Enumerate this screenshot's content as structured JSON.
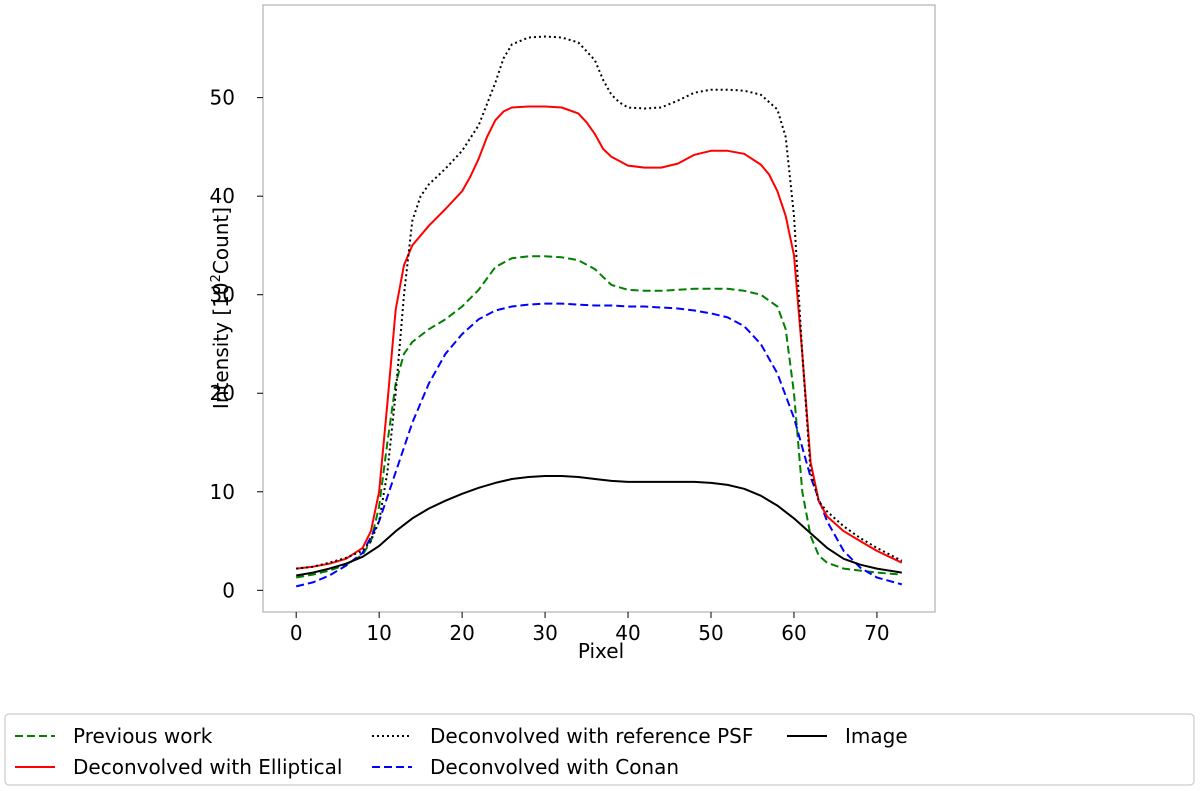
{
  "chart_data": {
    "type": "line",
    "title": "",
    "xlabel": "Pixel",
    "ylabel_prefix": "Intensity [10",
    "ylabel_sup": "2",
    "ylabel_suffix": "Count]",
    "xlim": [
      -4,
      77
    ],
    "ylim": [
      -2.2,
      59.4
    ],
    "xticks": [
      0,
      10,
      20,
      30,
      40,
      50,
      60,
      70
    ],
    "yticks": [
      0,
      10,
      20,
      30,
      40,
      50
    ],
    "legend_position": "bottom",
    "series": [
      {
        "name": "Previous work",
        "color": "#008000",
        "style": "dashed",
        "x": [
          0,
          2,
          4,
          6,
          8,
          9,
          10,
          11,
          12,
          13,
          14,
          16,
          18,
          20,
          22,
          24,
          26,
          28,
          30,
          32,
          34,
          36,
          38,
          40,
          42,
          44,
          46,
          48,
          50,
          52,
          54,
          56,
          58,
          59,
          60,
          61,
          62,
          63,
          64,
          66,
          68,
          70,
          73
        ],
        "values": [
          1.3,
          1.6,
          2.0,
          2.6,
          3.6,
          5.0,
          8.5,
          15.0,
          21.0,
          24.0,
          25.2,
          26.5,
          27.5,
          28.8,
          30.5,
          32.8,
          33.7,
          33.9,
          33.9,
          33.8,
          33.5,
          32.6,
          31.0,
          30.5,
          30.4,
          30.4,
          30.5,
          30.6,
          30.6,
          30.6,
          30.4,
          30.0,
          28.8,
          26.5,
          20.0,
          10.0,
          5.5,
          3.5,
          2.8,
          2.2,
          2.0,
          1.8,
          1.6
        ]
      },
      {
        "name": "Deconvolved with Conan",
        "color": "#0000ff",
        "style": "dashed",
        "x": [
          0,
          2,
          4,
          6,
          8,
          10,
          12,
          14,
          16,
          18,
          20,
          22,
          24,
          26,
          28,
          30,
          32,
          34,
          36,
          38,
          40,
          42,
          44,
          46,
          48,
          50,
          52,
          54,
          56,
          58,
          60,
          62,
          64,
          66,
          68,
          70,
          73
        ],
        "values": [
          0.4,
          0.8,
          1.5,
          2.5,
          3.8,
          7.0,
          12.0,
          17.0,
          21.0,
          24.0,
          26.0,
          27.5,
          28.4,
          28.8,
          29.0,
          29.1,
          29.1,
          29.0,
          28.9,
          28.9,
          28.8,
          28.8,
          28.7,
          28.6,
          28.4,
          28.1,
          27.7,
          26.8,
          25.0,
          22.0,
          17.5,
          11.5,
          7.0,
          4.0,
          2.3,
          1.3,
          0.6
        ]
      },
      {
        "name": "Deconvolved with Elliptical",
        "color": "#ff0000",
        "style": "solid",
        "x": [
          0,
          2,
          4,
          6,
          8,
          9,
          10,
          11,
          12,
          13,
          14,
          16,
          18,
          20,
          21,
          22,
          23,
          24,
          25,
          26,
          28,
          30,
          32,
          34,
          35,
          36,
          37,
          38,
          40,
          42,
          44,
          46,
          48,
          50,
          52,
          54,
          56,
          57,
          58,
          59,
          60,
          61,
          62,
          63,
          64,
          66,
          68,
          70,
          73
        ],
        "values": [
          2.2,
          2.4,
          2.7,
          3.2,
          4.3,
          6.0,
          10.0,
          19.0,
          28.5,
          33.0,
          35.0,
          37.0,
          38.7,
          40.5,
          42.0,
          43.8,
          46.0,
          47.7,
          48.6,
          49.0,
          49.1,
          49.1,
          49.0,
          48.4,
          47.5,
          46.3,
          44.8,
          44.0,
          43.1,
          42.9,
          42.9,
          43.3,
          44.2,
          44.6,
          44.6,
          44.3,
          43.2,
          42.2,
          40.5,
          38.0,
          34.0,
          24.0,
          13.0,
          9.0,
          7.5,
          6.0,
          5.0,
          4.0,
          2.8
        ]
      },
      {
        "name": "Image",
        "color": "#000000",
        "style": "solid",
        "x": [
          0,
          2,
          4,
          6,
          8,
          10,
          12,
          14,
          16,
          18,
          20,
          22,
          24,
          26,
          28,
          30,
          32,
          34,
          36,
          38,
          40,
          42,
          44,
          46,
          48,
          50,
          52,
          54,
          56,
          58,
          60,
          62,
          64,
          66,
          68,
          70,
          73
        ],
        "values": [
          1.5,
          1.8,
          2.2,
          2.7,
          3.4,
          4.5,
          6.0,
          7.3,
          8.3,
          9.1,
          9.8,
          10.4,
          10.9,
          11.3,
          11.5,
          11.6,
          11.6,
          11.5,
          11.3,
          11.1,
          11.0,
          11.0,
          11.0,
          11.0,
          11.0,
          10.9,
          10.7,
          10.3,
          9.6,
          8.6,
          7.3,
          5.8,
          4.3,
          3.2,
          2.6,
          2.2,
          1.8
        ]
      },
      {
        "name": "Deconvolved with reference PSF",
        "color": "#000000",
        "style": "dotted",
        "x": [
          0,
          2,
          4,
          6,
          8,
          9,
          10,
          11,
          12,
          13,
          14,
          15,
          16,
          18,
          20,
          22,
          24,
          25,
          26,
          28,
          30,
          32,
          34,
          36,
          37,
          38,
          39,
          40,
          42,
          44,
          46,
          48,
          50,
          52,
          54,
          56,
          58,
          59,
          60,
          61,
          62,
          63,
          64,
          66,
          68,
          70,
          73
        ],
        "values": [
          2.2,
          2.4,
          2.8,
          3.3,
          4.0,
          5.0,
          7.0,
          12.0,
          20.0,
          30.0,
          37.5,
          40.0,
          41.2,
          42.8,
          44.6,
          47.2,
          51.5,
          54.0,
          55.4,
          56.1,
          56.2,
          56.1,
          55.6,
          53.8,
          51.8,
          50.3,
          49.5,
          49.0,
          48.9,
          49.0,
          49.7,
          50.5,
          50.8,
          50.8,
          50.7,
          50.3,
          48.8,
          46.0,
          38.0,
          24.0,
          12.0,
          9.0,
          8.0,
          6.5,
          5.3,
          4.3,
          3.0
        ]
      }
    ],
    "legend_order": [
      0,
      2,
      4,
      1,
      3
    ]
  }
}
